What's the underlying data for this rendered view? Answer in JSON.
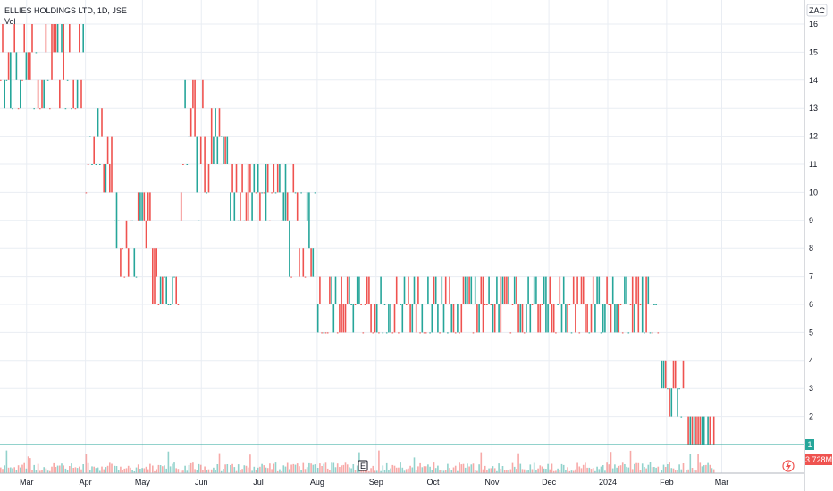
{
  "chart_data": {
    "type": "bar",
    "symbol_line": "ELLIES HOLDINGS LTD, 1D, JSE",
    "volume_label": "Vol",
    "currency": "ZAC",
    "ylim": [
      0,
      17
    ],
    "y_ticks": [
      1,
      2,
      3,
      4,
      5,
      6,
      7,
      8,
      9,
      10,
      11,
      12,
      13,
      14,
      15,
      16
    ],
    "x_tick_labels": [
      "Mar",
      "Apr",
      "May",
      "Jun",
      "Jul",
      "Aug",
      "Sep",
      "Oct",
      "Nov",
      "Dec",
      "2024",
      "Feb",
      "Mar"
    ],
    "last_price": "1",
    "last_volume": "3.728M",
    "event_marker": "E",
    "grid": true,
    "colors": {
      "up": "#26a69a",
      "down": "#ef5350",
      "grid": "#e9edf3"
    },
    "segments": [
      {
        "from": "2023-02-15",
        "to": "2023-03-31",
        "low": 13,
        "high": 16
      },
      {
        "from": "2023-04-01",
        "to": "2023-04-15",
        "low": 10,
        "high": 13
      },
      {
        "from": "2023-04-16",
        "to": "2023-05-05",
        "low": 7,
        "high": 10
      },
      {
        "from": "2023-05-06",
        "to": "2023-05-20",
        "low": 6,
        "high": 8
      },
      {
        "from": "2023-05-21",
        "to": "2023-06-05",
        "low": 9,
        "high": 14
      },
      {
        "from": "2023-06-06",
        "to": "2023-06-15",
        "low": 11,
        "high": 13
      },
      {
        "from": "2023-06-16",
        "to": "2023-07-15",
        "low": 9,
        "high": 11
      },
      {
        "from": "2023-07-16",
        "to": "2023-07-31",
        "low": 7,
        "high": 11
      },
      {
        "from": "2023-08-01",
        "to": "2024-01-28",
        "low": 5,
        "high": 7
      },
      {
        "from": "2024-01-29",
        "to": "2024-02-10",
        "low": 2,
        "high": 4
      },
      {
        "from": "2024-02-11",
        "to": "2024-02-26",
        "low": 1,
        "high": 2
      }
    ]
  }
}
